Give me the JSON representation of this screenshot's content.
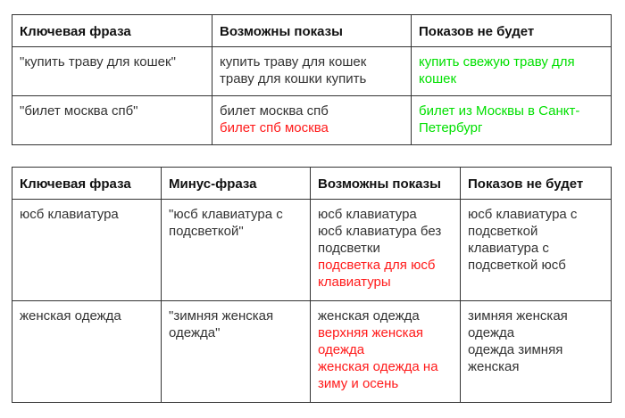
{
  "colors": {
    "text": "#333333",
    "red": "#ff1a1a",
    "green": "#00e000"
  },
  "table1": {
    "headers": [
      "Ключевая фраза",
      "Возможны показы",
      "Показов не будет"
    ],
    "rows": [
      [
        [
          {
            "text": "\"купить траву для кошек\"",
            "color": "default"
          }
        ],
        [
          {
            "text": "купить траву для кошек",
            "color": "default"
          },
          {
            "text": "траву для кошки купить",
            "color": "default"
          }
        ],
        [
          {
            "text": "купить свежую траву для кошек",
            "color": "green"
          }
        ]
      ],
      [
        [
          {
            "text": "\"билет москва спб\"",
            "color": "default"
          }
        ],
        [
          {
            "text": "билет москва спб",
            "color": "default"
          },
          {
            "text": "билет спб москва",
            "color": "red"
          }
        ],
        [
          {
            "text": "билет из Москвы в Санкт-Петербург",
            "color": "green"
          }
        ]
      ]
    ]
  },
  "table2": {
    "headers": [
      "Ключевая фраза",
      "Минус-фраза",
      "Возможны показы",
      "Показов не будет"
    ],
    "rows": [
      [
        [
          {
            "text": "юсб клавиатура",
            "color": "default"
          }
        ],
        [
          {
            "text": "\"юсб клавиатура с подсветкой\"",
            "color": "default"
          }
        ],
        [
          {
            "text": "юсб клавиатура",
            "color": "default"
          },
          {
            "text": "юсб клавиатура без подсветки",
            "color": "default"
          },
          {
            "text": "подсветка для юсб клавиатуры",
            "color": "red"
          }
        ],
        [
          {
            "text": "юсб клавиатура с подсветкой",
            "color": "default"
          },
          {
            "text": "клавиатура с подсветкой юсб",
            "color": "default"
          }
        ]
      ],
      [
        [
          {
            "text": "женская одежда",
            "color": "default"
          }
        ],
        [
          {
            "text": "\"зимняя женская одежда\"",
            "color": "default"
          }
        ],
        [
          {
            "text": "женская одежда",
            "color": "default"
          },
          {
            "text": "верхняя женская одежда",
            "color": "red"
          },
          {
            "text": "женская одежда на зиму и осень",
            "color": "red"
          }
        ],
        [
          {
            "text": "зимняя женская одежда",
            "color": "default"
          },
          {
            "text": "одежда зимняя женская",
            "color": "default"
          }
        ]
      ]
    ]
  }
}
